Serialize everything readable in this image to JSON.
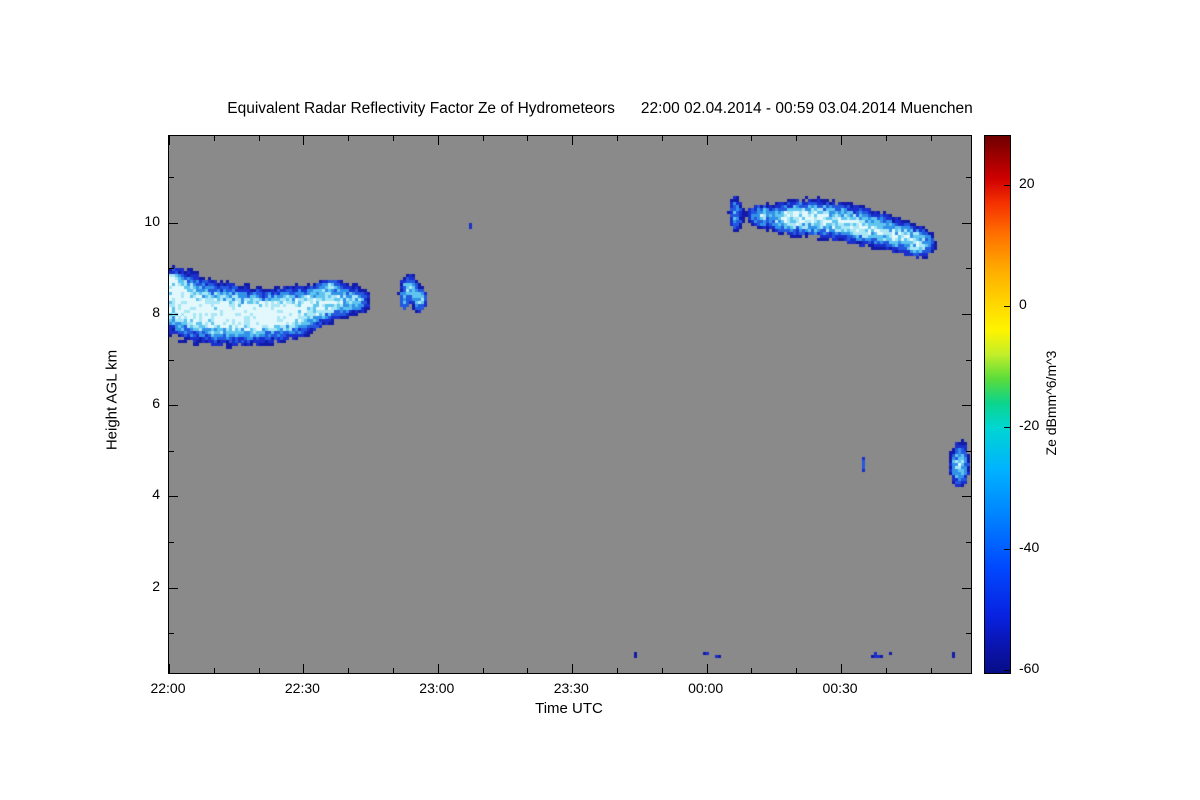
{
  "chart_data": {
    "type": "heatmap",
    "title": "Equivalent Radar Reflectivity Factor Ze of Hydrometeors",
    "title_period": "22:00 02.04.2014 - 00:59 03.04.2014 Muenchen",
    "xlabel": "Time UTC",
    "ylabel": "Height AGL km",
    "background_color": "#8a8a8a",
    "x_axis": {
      "range_min": [
        0,
        179
      ],
      "minor_step_min": 10,
      "ticks": [
        {
          "t_min": 0,
          "label": "22:00"
        },
        {
          "t_min": 30,
          "label": "22:30"
        },
        {
          "t_min": 60,
          "label": "23:00"
        },
        {
          "t_min": 90,
          "label": "23:30"
        },
        {
          "t_min": 120,
          "label": "00:00"
        },
        {
          "t_min": 150,
          "label": "00:30"
        }
      ]
    },
    "y_axis": {
      "range_km": [
        0.13,
        11.9
      ],
      "ticks_km": [
        2,
        4,
        6,
        8,
        10
      ],
      "minor_ticks_km": [
        1,
        3,
        5,
        7,
        9,
        11
      ]
    },
    "echo_palette": [
      {
        "min": 1.05,
        "color": "#e2f8fc"
      },
      {
        "min": 0.78,
        "color": "#a9e6f6"
      },
      {
        "min": 0.55,
        "color": "#5fc4ee"
      },
      {
        "min": 0.4,
        "color": "#3392e8"
      },
      {
        "min": 0.28,
        "color": "#2459de"
      },
      {
        "min": 0.18,
        "color": "#1b2fcc"
      },
      {
        "min": 0.12,
        "color": "#121ba8"
      }
    ],
    "echoes": [
      {
        "t_min": 0.5,
        "h_km": 8.7,
        "rt_min": 1.5,
        "rh_km": 0.2,
        "intensity": 0.6
      },
      {
        "t_min": 1,
        "h_km": 8.35,
        "rt_min": 4,
        "rh_km": 0.5,
        "intensity": 0.95
      },
      {
        "t_min": 5,
        "h_km": 8.15,
        "rt_min": 5,
        "rh_km": 0.55,
        "intensity": 1.0
      },
      {
        "t_min": 11,
        "h_km": 8.0,
        "rt_min": 6,
        "rh_km": 0.5,
        "intensity": 1.0
      },
      {
        "t_min": 17,
        "h_km": 7.95,
        "rt_min": 6,
        "rh_km": 0.45,
        "intensity": 1.0
      },
      {
        "t_min": 23,
        "h_km": 7.95,
        "rt_min": 6,
        "rh_km": 0.42,
        "intensity": 0.9
      },
      {
        "t_min": 28,
        "h_km": 8.05,
        "rt_min": 5,
        "rh_km": 0.4,
        "intensity": 0.9
      },
      {
        "t_min": 33,
        "h_km": 8.2,
        "rt_min": 4.5,
        "rh_km": 0.35,
        "intensity": 0.8
      },
      {
        "t_min": 38,
        "h_km": 8.3,
        "rt_min": 4,
        "rh_km": 0.3,
        "intensity": 0.7
      },
      {
        "t_min": 42,
        "h_km": 8.3,
        "rt_min": 2.5,
        "rh_km": 0.25,
        "intensity": 0.5
      },
      {
        "t_min": 36,
        "h_km": 8.62,
        "rt_min": 2,
        "rh_km": 0.12,
        "intensity": 0.45
      },
      {
        "t_min": 33.5,
        "h_km": 8.5,
        "rt_min": 1,
        "rh_km": 0.1,
        "intensity": 0.4
      },
      {
        "t_min": 53.5,
        "h_km": 8.55,
        "rt_min": 1.8,
        "rh_km": 0.25,
        "intensity": 0.85
      },
      {
        "t_min": 56,
        "h_km": 8.3,
        "rt_min": 1.5,
        "rh_km": 0.22,
        "intensity": 0.8
      },
      {
        "t_min": 52.5,
        "h_km": 8.25,
        "rt_min": 0.8,
        "rh_km": 0.15,
        "intensity": 0.5
      },
      {
        "t_min": 67.5,
        "h_km": 9.95,
        "rt_min": 0.35,
        "rh_km": 0.1,
        "intensity": 0.35
      },
      {
        "t_min": 126.5,
        "h_km": 10.2,
        "rt_min": 1.4,
        "rh_km": 0.35,
        "intensity": 0.6
      },
      {
        "t_min": 132,
        "h_km": 10.15,
        "rt_min": 2.5,
        "rh_km": 0.22,
        "intensity": 0.7
      },
      {
        "t_min": 138,
        "h_km": 10.1,
        "rt_min": 4,
        "rh_km": 0.28,
        "intensity": 0.9
      },
      {
        "t_min": 144,
        "h_km": 10.1,
        "rt_min": 5,
        "rh_km": 0.32,
        "intensity": 1.0
      },
      {
        "t_min": 151,
        "h_km": 10.0,
        "rt_min": 5,
        "rh_km": 0.32,
        "intensity": 0.9
      },
      {
        "t_min": 157,
        "h_km": 9.85,
        "rt_min": 4.5,
        "rh_km": 0.3,
        "intensity": 0.85
      },
      {
        "t_min": 163,
        "h_km": 9.7,
        "rt_min": 4,
        "rh_km": 0.28,
        "intensity": 0.8
      },
      {
        "t_min": 167.5,
        "h_km": 9.55,
        "rt_min": 3,
        "rh_km": 0.25,
        "intensity": 0.9
      },
      {
        "t_min": 176.5,
        "h_km": 4.7,
        "rt_min": 1.8,
        "rh_km": 0.4,
        "intensity": 0.9
      },
      {
        "t_min": 155,
        "h_km": 4.7,
        "rt_min": 0.3,
        "rh_km": 0.18,
        "intensity": 0.32
      },
      {
        "t_min": 104,
        "h_km": 0.55,
        "rt_min": 0.6,
        "rh_km": 0.08,
        "intensity": 0.24
      },
      {
        "t_min": 119.5,
        "h_km": 0.55,
        "rt_min": 1.2,
        "rh_km": 0.08,
        "intensity": 0.26
      },
      {
        "t_min": 122.5,
        "h_km": 0.5,
        "rt_min": 0.8,
        "rh_km": 0.07,
        "intensity": 0.24
      },
      {
        "t_min": 158,
        "h_km": 0.5,
        "rt_min": 1.4,
        "rh_km": 0.09,
        "intensity": 0.26
      },
      {
        "t_min": 161,
        "h_km": 0.55,
        "rt_min": 0.5,
        "rh_km": 0.07,
        "intensity": 0.24
      },
      {
        "t_min": 175,
        "h_km": 0.5,
        "rt_min": 0.5,
        "rh_km": 0.08,
        "intensity": 0.24
      }
    ],
    "colorbar": {
      "label": "Ze dBmm^6/m^3",
      "ticks": [
        20,
        0,
        -20,
        -40,
        -60
      ],
      "range": [
        -60.5,
        28
      ],
      "stops": [
        {
          "v": 28,
          "color": "#6f0000"
        },
        {
          "v": 25,
          "color": "#990000"
        },
        {
          "v": 21,
          "color": "#cf0000"
        },
        {
          "v": 17,
          "color": "#f43000"
        },
        {
          "v": 12,
          "color": "#ff6e00"
        },
        {
          "v": 6,
          "color": "#ffab00"
        },
        {
          "v": 0,
          "color": "#ffd900"
        },
        {
          "v": -4,
          "color": "#fef400"
        },
        {
          "v": -8,
          "color": "#c2ee2a"
        },
        {
          "v": -12,
          "color": "#5bdc3a"
        },
        {
          "v": -16,
          "color": "#0cd48c"
        },
        {
          "v": -20,
          "color": "#00d6d2"
        },
        {
          "v": -27,
          "color": "#00b2ff"
        },
        {
          "v": -35,
          "color": "#0080ff"
        },
        {
          "v": -43,
          "color": "#0049ff"
        },
        {
          "v": -51,
          "color": "#0822e0"
        },
        {
          "v": -57,
          "color": "#0a12a6"
        },
        {
          "v": -60.5,
          "color": "#070d86"
        }
      ]
    }
  }
}
